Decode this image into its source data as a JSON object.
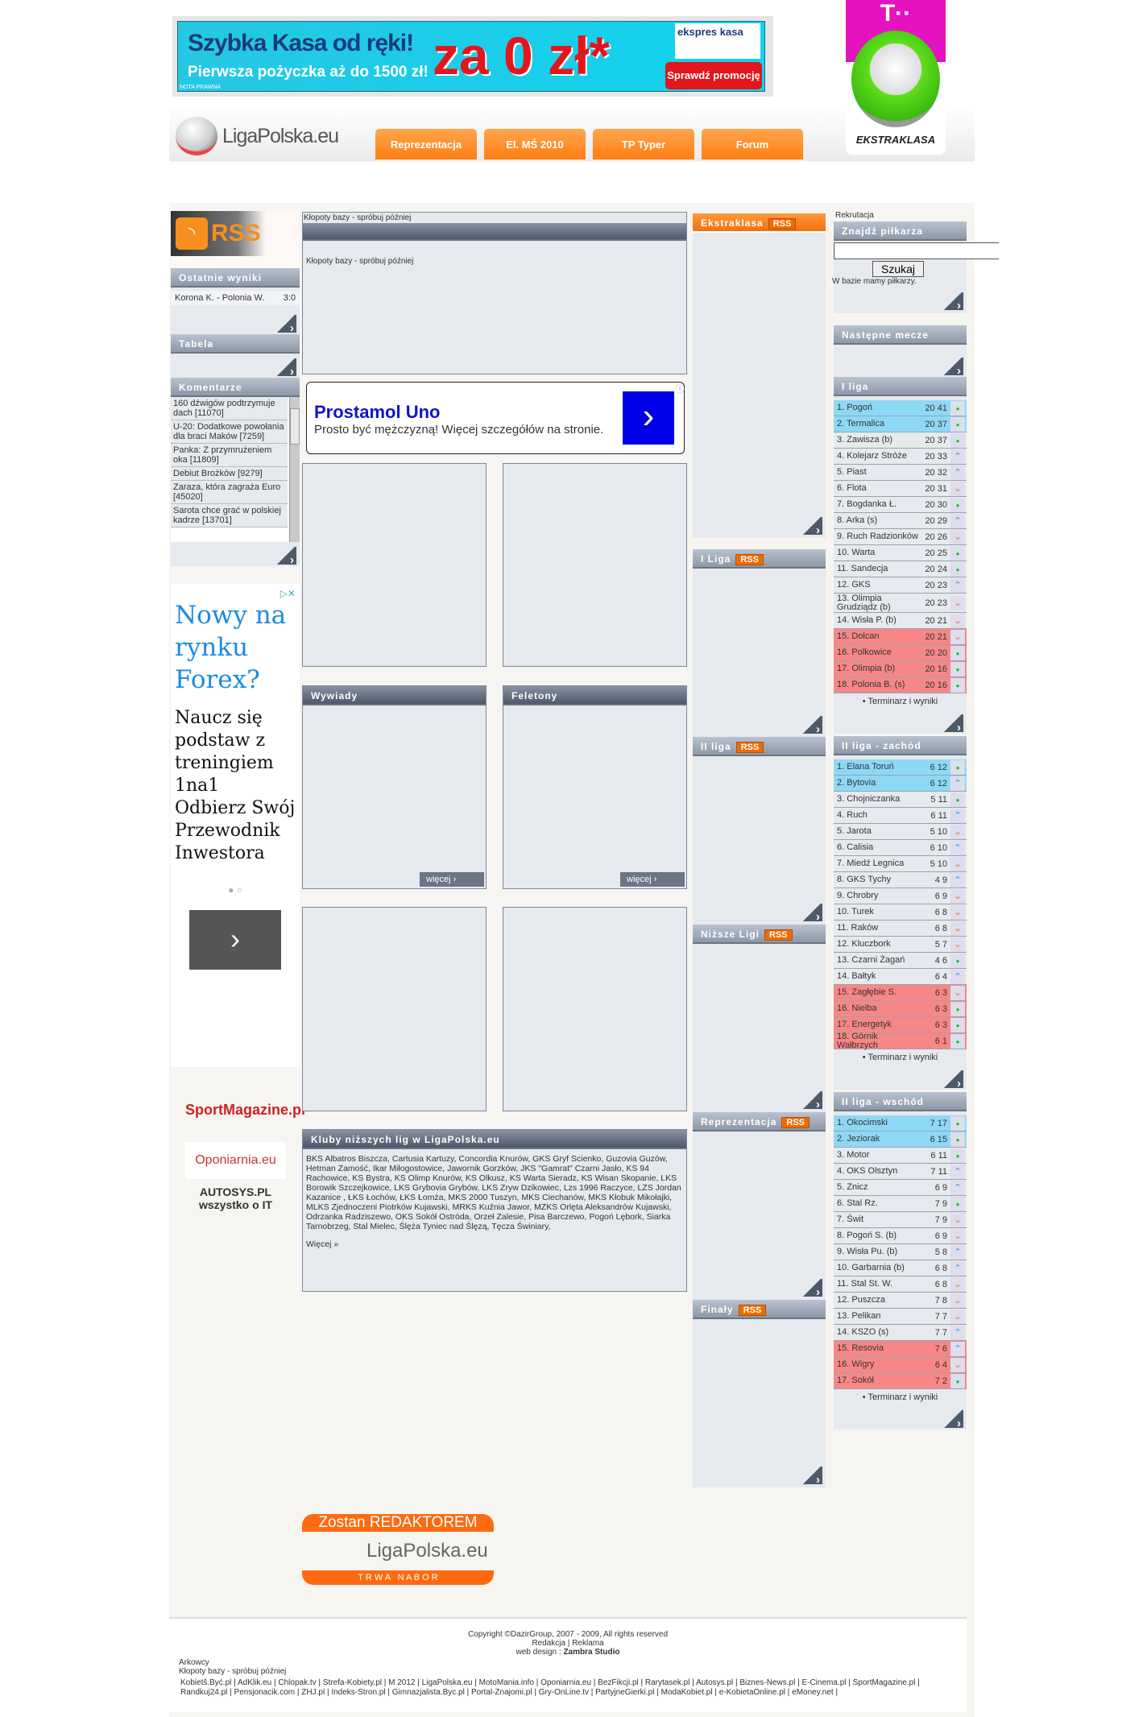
{
  "header": {
    "ad": {
      "line1": "Szybka Kasa od ręki!",
      "line2": "Pierwsza pożyczka aż do 1500 zł!",
      "big": "za 0 zł*",
      "brand": "ekspres kasa",
      "cta": "Sprawdź promocję »",
      "note": "NOTA PRAWNA"
    },
    "logo": "LigaPolska.eu",
    "nav": [
      "Reprezentacja",
      "El. MŚ 2010",
      "TP Typer",
      "Forum"
    ],
    "ekstra_logo": "EKSTRAKLASA",
    "ekstra_top": "T··"
  },
  "left": {
    "rss": "RSS",
    "results_title": "Ostatnie wyniki",
    "result": {
      "match": "Korona K. - Polonia W.",
      "score": "3:0"
    },
    "table_title": "Tabela",
    "comments_title": "Komentarze",
    "comments": [
      "160 dźwigów podtrzymuje dach [11070]",
      "U-20: Dodatkowe powołania dla braci Maków [7259]",
      "Panka: Z przymrużeniem oka [11809]",
      "Debiut Brożków [9279]",
      "Zaraza, która zagraża Euro [45020]",
      "Sarota chce grać w polskiej kadrze [13701]"
    ],
    "ad": {
      "title": "Nowy na rynku Forex?",
      "body": "Naucz się podstaw z treningiem 1na1 Odbierz Swój Przewodnik Inwestora"
    },
    "partners": [
      "SportMagazine.pl",
      "Oponiarnia.eu",
      "AUTOSYS.PL wszystko o IT"
    ]
  },
  "center": {
    "db_error": "Kłopoty bazy - spróbuj później",
    "ad": {
      "title": "Prostamol Uno",
      "body": "Prosto być mężczyzną! Więcej szczegółów na stronie."
    },
    "wywiady": "Wywiady",
    "feletony": "Feletony",
    "more": "więcej",
    "clubs_title": "Kluby niższych lig w LigaPolska.eu",
    "clubs": [
      "BKS Albatros Biszcza",
      "Cartusia Kartuzy",
      "Concordia Knurów",
      "GKS Gryf Scienko",
      "Guzovia Guzów",
      "Hetman Zamość",
      "Ikar Miłogostowice",
      "Jawornik Gorzków",
      "JKS \"Gamrat\" Czarni Jasło",
      "KS 94 Rachowice",
      "KS Bystra",
      "KS Olimp Knurów",
      "KS Olkusz",
      "KS Warta Sieradz",
      "KS Wisan Skopanie",
      "LKS Borowik Szczejkowice",
      "LKS Grybovia Grybów",
      "LKS Zryw Dzikowiec",
      "Lzs 1996 Raczyce",
      "LZS Jordan Kazanice ",
      "ŁKS Łochów",
      "ŁKS Łomża",
      "MKS 2000 Tuszyn",
      "MKS Ciechanów",
      "MKS Kłobuk Mikołajki",
      "MLKS Zjednoczeni Piotrków Kujawski",
      "MRKS Kuźnia Jawor",
      "MZKS Orlęta Aleksandrów Kujawski",
      "Odrzanka Radziszewo",
      "OKS Sokół Ostróda",
      "Orzeł Zalesie",
      "Pisa Barczewo",
      "Pogoń Lębork",
      "Siarka Tarnobrzeg",
      "Stal Mielec",
      "Ślęża Tyniec nad Ślęzą",
      "Tęcza Świniary"
    ],
    "clubs_more": "Więcej »",
    "recruit": {
      "top": "Zostan REDAKTOREM",
      "logo": "LigaPolska.eu",
      "bottom": "T R W A   N A B O R"
    }
  },
  "news": {
    "rss": "RSS",
    "sections": [
      "Ekstraklasa",
      "I Liga",
      "II liga",
      "Niższe Ligi",
      "Reprezentacja",
      "Finały"
    ]
  },
  "right": {
    "recruit_link": "Rekrutacja",
    "search_title": "Znajdź piłkarza",
    "search_value": "",
    "search_button": "Szukaj",
    "db_text": "W bazie mamy piłkarzy.",
    "next_title": "Następne mecze",
    "schedule_link": "Terminarz i wyniki",
    "leagues": [
      {
        "title": "I liga",
        "top": 2,
        "rel_from": 15,
        "rows": [
          [
            "1",
            "Pogoń",
            "20",
            "41",
            "dot"
          ],
          [
            "2",
            "Termalica",
            "20",
            "37",
            "dot"
          ],
          [
            "3",
            "Zawisza (b)",
            "20",
            "37",
            "dot"
          ],
          [
            "4",
            "Kolejarz Stróże",
            "20",
            "33",
            "up"
          ],
          [
            "5",
            "Piast",
            "20",
            "32",
            "up"
          ],
          [
            "6",
            "Flota",
            "20",
            "31",
            "down"
          ],
          [
            "7",
            "Bogdanka Ł.",
            "20",
            "30",
            "dot"
          ],
          [
            "8",
            "Arka (s)",
            "20",
            "29",
            "up"
          ],
          [
            "9",
            "Ruch Radzionków",
            "20",
            "26",
            "down"
          ],
          [
            "10",
            "Warta",
            "20",
            "25",
            "dot"
          ],
          [
            "11",
            "Sandecja",
            "20",
            "24",
            "dot"
          ],
          [
            "12",
            "GKS",
            "20",
            "23",
            "up"
          ],
          [
            "13",
            "Olimpia Grudziądz (b)",
            "20",
            "23",
            "down"
          ],
          [
            "14",
            "Wisła P. (b)",
            "20",
            "21",
            "down"
          ],
          [
            "15",
            "Dolcan",
            "20",
            "21",
            "down"
          ],
          [
            "16",
            "Polkowice",
            "20",
            "20",
            "dot"
          ],
          [
            "17",
            "Olimpia (b)",
            "20",
            "16",
            "dot"
          ],
          [
            "18",
            "Polonia B. (s)",
            "20",
            "16",
            "dot"
          ]
        ]
      },
      {
        "title": "II liga - zachód",
        "top": 2,
        "rel_from": 15,
        "rows": [
          [
            "1",
            "Elana Toruń",
            "6",
            "12",
            "dot"
          ],
          [
            "2",
            "Bytovia",
            "6",
            "12",
            "up"
          ],
          [
            "3",
            "Chojniczanka",
            "5",
            "11",
            "dot"
          ],
          [
            "4",
            "Ruch",
            "6",
            "11",
            "up"
          ],
          [
            "5",
            "Jarota",
            "5",
            "10",
            "down"
          ],
          [
            "6",
            "Calisia",
            "6",
            "10",
            "up"
          ],
          [
            "7",
            "Miedź Legnica",
            "5",
            "10",
            "down"
          ],
          [
            "8",
            "GKS Tychy",
            "4",
            "9",
            "up"
          ],
          [
            "9",
            "Chrobry",
            "6",
            "9",
            "down"
          ],
          [
            "10",
            "Turek",
            "6",
            "8",
            "down"
          ],
          [
            "11",
            "Raków",
            "6",
            "8",
            "down"
          ],
          [
            "12",
            "Kluczbork",
            "5",
            "7",
            "down"
          ],
          [
            "13",
            "Czarni Żagań",
            "4",
            "6",
            "dot"
          ],
          [
            "14",
            "Bałtyk",
            "6",
            "4",
            "up"
          ],
          [
            "15",
            "Zagłębie S.",
            "6",
            "3",
            "down"
          ],
          [
            "16",
            "Nielba",
            "6",
            "3",
            "dot"
          ],
          [
            "17",
            "Energetyk",
            "6",
            "3",
            "dot"
          ],
          [
            "18",
            "Górnik Wałbrzych",
            "6",
            "1",
            "dot"
          ]
        ]
      },
      {
        "title": "II liga - wschód",
        "top": 2,
        "rel_from": 15,
        "rows": [
          [
            "1",
            "Okocimski",
            "7",
            "17",
            "dot"
          ],
          [
            "2",
            "Jeziorak",
            "6",
            "15",
            "dot"
          ],
          [
            "3",
            "Motor",
            "6",
            "11",
            "dot"
          ],
          [
            "4",
            "OKS Olsztyn",
            "7",
            "11",
            "up"
          ],
          [
            "5",
            "Znicz",
            "6",
            "9",
            "up"
          ],
          [
            "6",
            "Stal Rz.",
            "7",
            "9",
            "dot"
          ],
          [
            "7",
            "Świt",
            "7",
            "9",
            "down"
          ],
          [
            "8",
            "Pogoń S. (b)",
            "6",
            "9",
            "down"
          ],
          [
            "9",
            "Wisła Pu. (b)",
            "5",
            "8",
            "up"
          ],
          [
            "10",
            "Garbarnia (b)",
            "6",
            "8",
            "up"
          ],
          [
            "11",
            "Stal St. W.",
            "6",
            "8",
            "down"
          ],
          [
            "12",
            "Puszcza",
            "7",
            "8",
            "down"
          ],
          [
            "13",
            "Pelikan",
            "7",
            "7",
            "down"
          ],
          [
            "14",
            "KSZO (s)",
            "7",
            "7",
            "up"
          ],
          [
            "15",
            "Resovia",
            "7",
            "6",
            "up"
          ],
          [
            "16",
            "Wigry",
            "6",
            "4",
            "down"
          ],
          [
            "17",
            "Sokół",
            "7",
            "2",
            "dot"
          ]
        ]
      }
    ]
  },
  "footer": {
    "copyright_pre": "Copyright ©",
    "dazir": "DazirGroup",
    "copyright_post": ", 2007 - 2009, All rights reserved",
    "redakcja": "Redakcja",
    "reklama": "Reklama",
    "design_pre": "web design : ",
    "design": "Zambra Studio",
    "arkowcy": "Arkowcy",
    "db_error": "Kłopoty bazy - spróbuj później",
    "links": [
      "Kobietš.Być.pl",
      "AdKlik.eu",
      "Chlopak.tv",
      "Strefa-Kobiety.pl",
      "M 2012",
      "LigaPolska.eu",
      "MotoMania.info",
      "Oponiarnia.eu",
      "BezFikcji.pl",
      "Rarytasek.pl",
      "Autosys.pl",
      "Biznes-News.pl",
      "E-Cinema.pl",
      "SportMagazine.pl",
      "Randkuj24.pl",
      "Pensjonacik.com",
      "ZHJ.pl",
      "Indeks-Stron.pl",
      "Gimnazjalista.Byc.pl",
      "Portal-Znajomi.pl",
      "Gry-OnLine.tv",
      "PartyjneGierki.pl",
      "ModaKobiet.pl",
      "e-KobietaOnline.pl",
      "eMoney.net"
    ]
  }
}
